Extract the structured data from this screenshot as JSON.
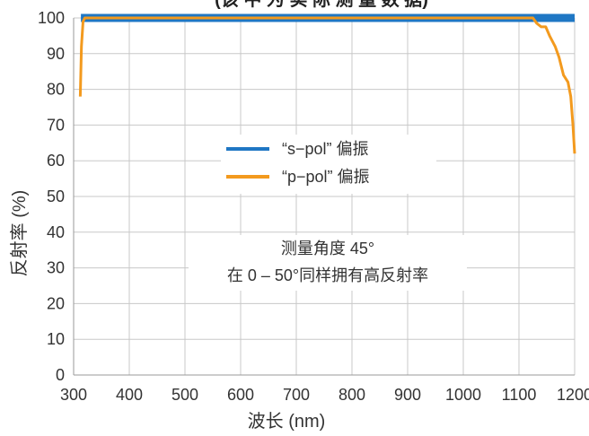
{
  "chart_data": {
    "type": "line",
    "title": "(该 中 为 实 际 测 量 数 据)",
    "xlabel": "波长 (nm)",
    "ylabel": "反射率 (%)",
    "xlim": [
      300,
      1200
    ],
    "ylim": [
      0,
      100
    ],
    "xticks": [
      "300",
      "400",
      "500",
      "600",
      "700",
      "800",
      "900",
      "1000",
      "1100",
      "1200"
    ],
    "yticks": [
      "0",
      "10",
      "20",
      "30",
      "40",
      "50",
      "60",
      "70",
      "80",
      "90",
      "100"
    ],
    "grid": true,
    "legend_position": "center",
    "annotation": [
      "测量角度 45°",
      "在 0 – 50°同样拥有高反射率"
    ],
    "series": [
      {
        "name": "“s−pol” 偏振",
        "color": "#1f77c4",
        "x": [
          313,
          1200
        ],
        "y": [
          100,
          100
        ]
      },
      {
        "name": "“p−pol” 偏振",
        "color": "#f39a1e",
        "x": [
          312,
          314,
          317,
          320,
          1100,
          1125,
          1132,
          1140,
          1148,
          1155,
          1165,
          1172,
          1180,
          1188,
          1193,
          1197,
          1200
        ],
        "y": [
          78,
          92,
          99,
          100,
          100,
          100,
          98.5,
          97.5,
          97.5,
          95,
          92,
          89,
          84,
          82,
          78,
          70,
          62
        ]
      }
    ]
  }
}
